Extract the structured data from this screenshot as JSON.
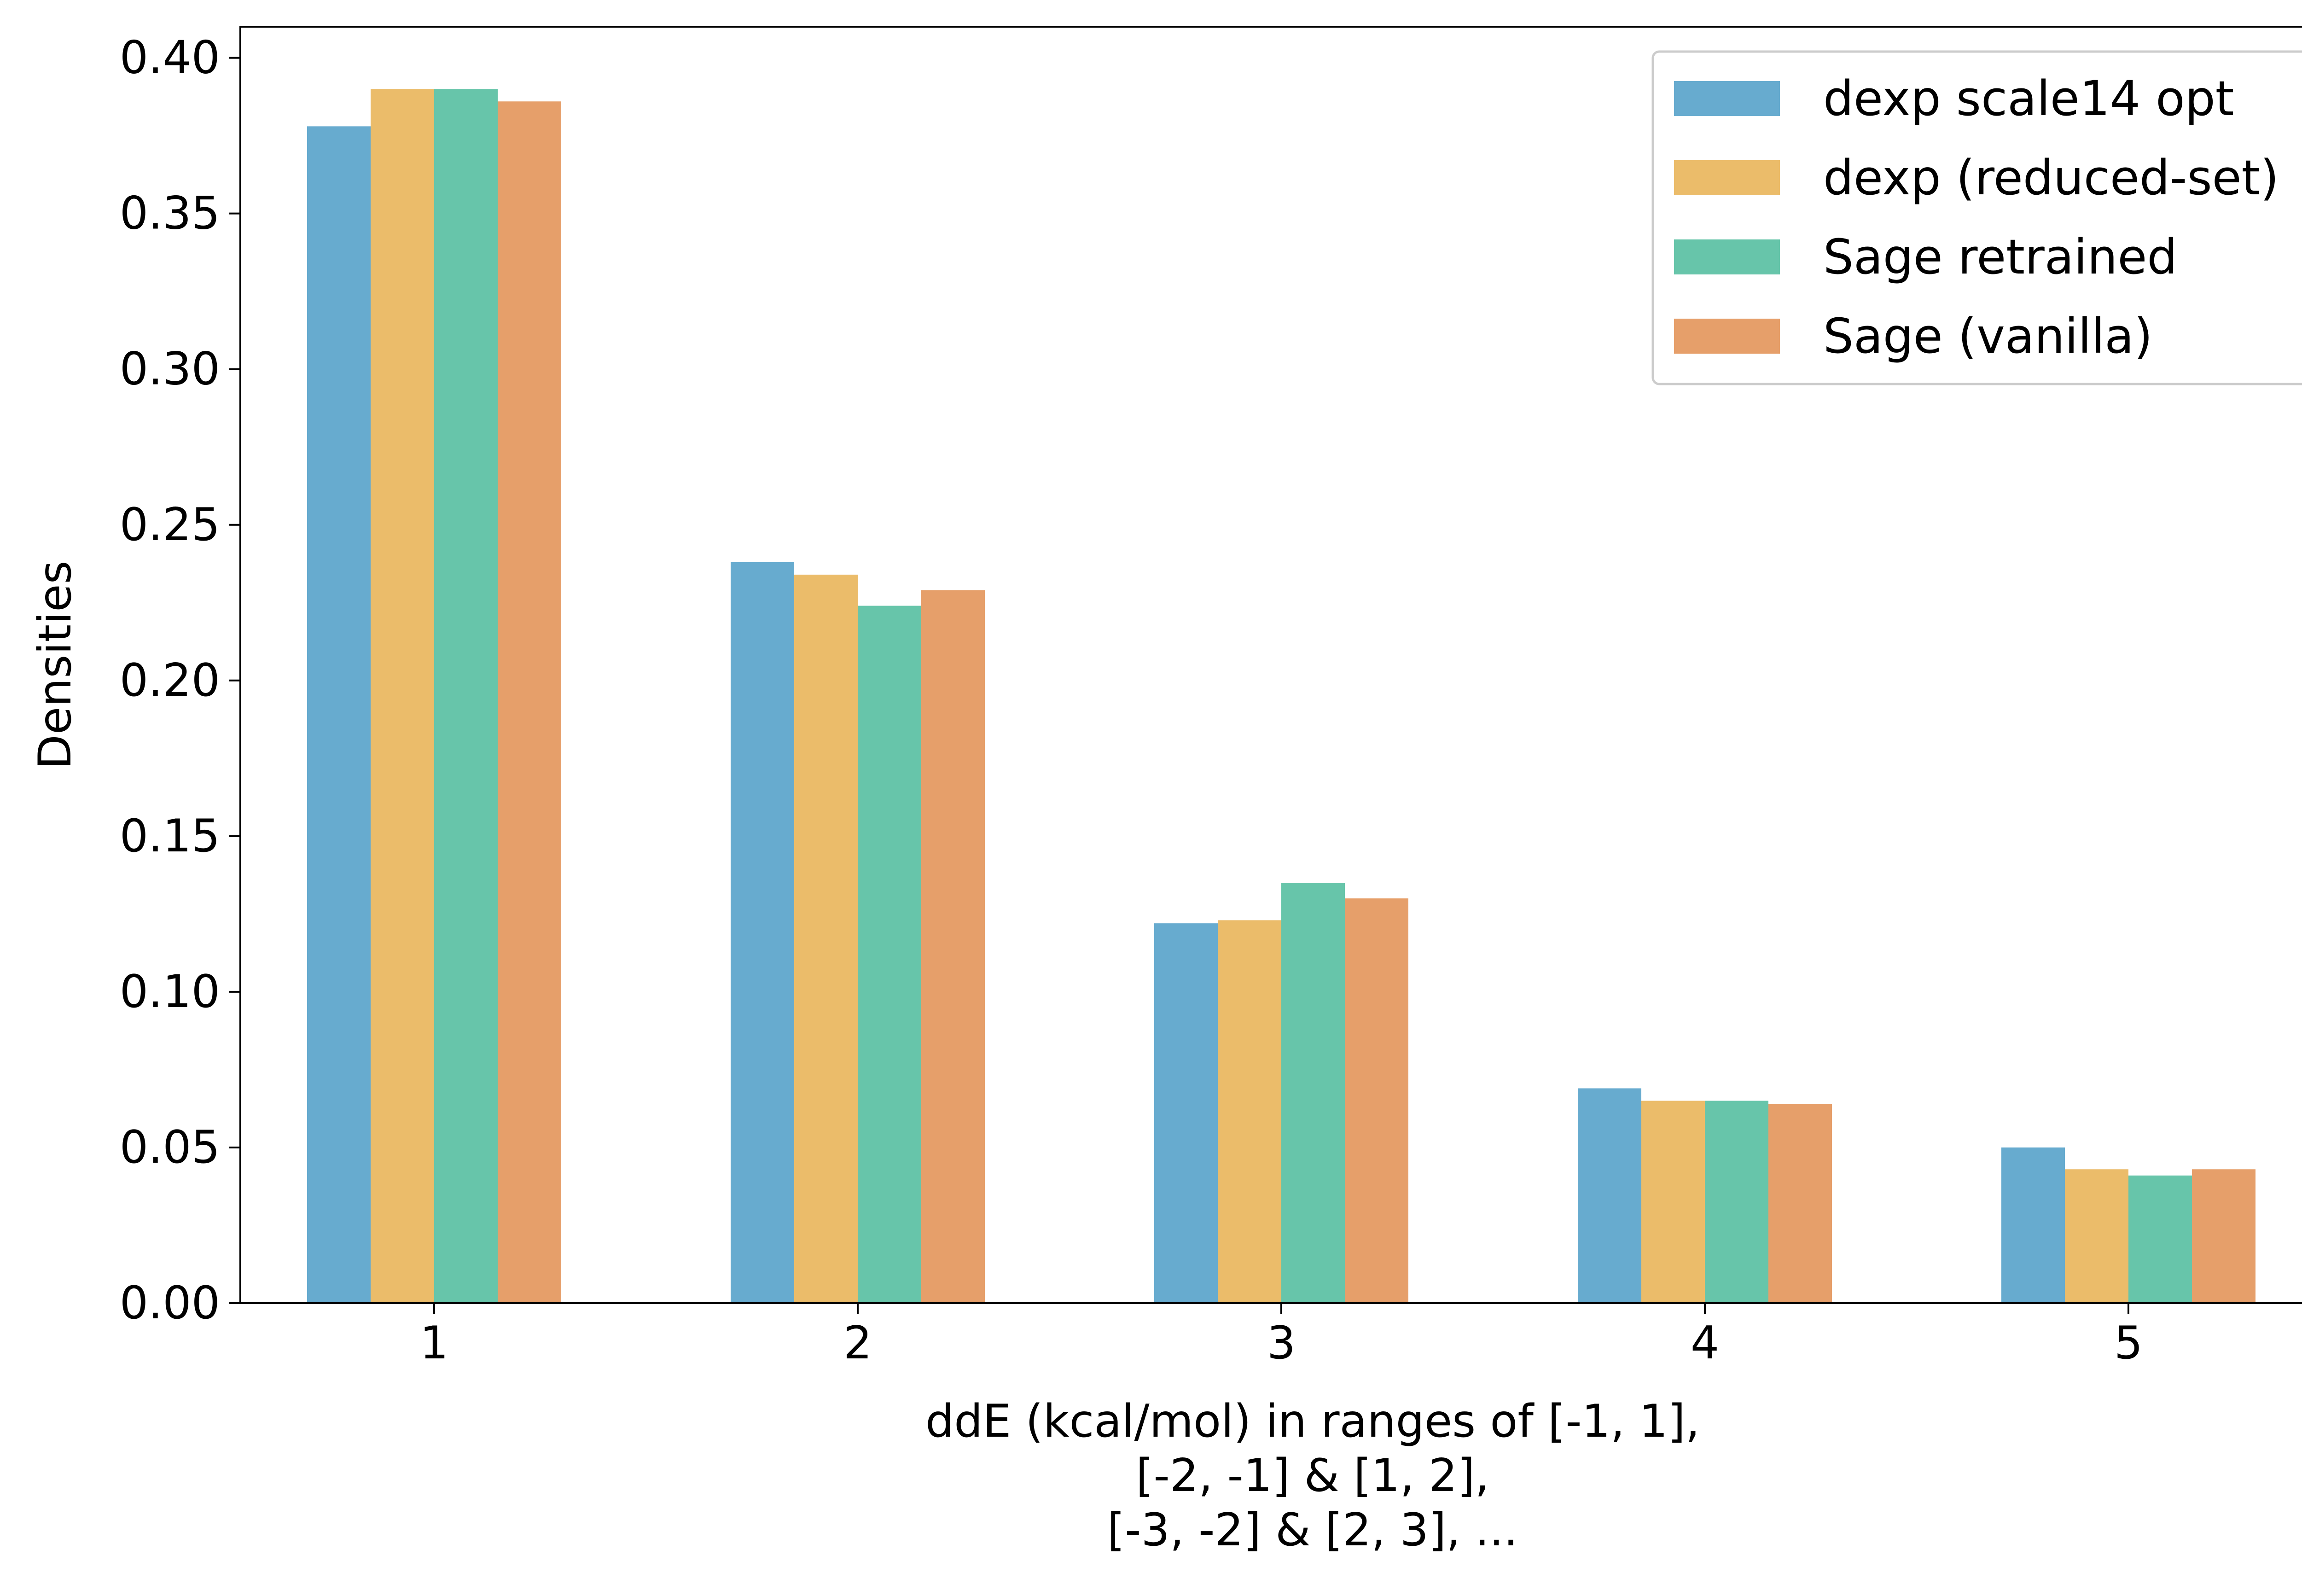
{
  "chart_data": {
    "type": "bar",
    "categories": [
      "1",
      "2",
      "3",
      "4",
      "5"
    ],
    "series": [
      {
        "name": "dexp scale14 opt",
        "color": "#67abcf",
        "values": [
          0.378,
          0.238,
          0.122,
          0.069,
          0.05
        ]
      },
      {
        "name": "dexp (reduced-set)",
        "color": "#ebbc6a",
        "values": [
          0.39,
          0.234,
          0.123,
          0.065,
          0.043
        ]
      },
      {
        "name": "Sage retrained",
        "color": "#67c5aa",
        "values": [
          0.39,
          0.224,
          0.135,
          0.065,
          0.041
        ]
      },
      {
        "name": "Sage (vanilla)",
        "color": "#e69f6a",
        "values": [
          0.386,
          0.229,
          0.13,
          0.064,
          0.043
        ]
      }
    ],
    "ylabel": "Densities",
    "xlabel_lines": [
      "ddE (kcal/mol) in ranges of [-1, 1],",
      "[-2, -1] & [1, 2],",
      "[-3, -2] & [2, 3], ..."
    ],
    "yticks": [
      "0.00",
      "0.05",
      "0.10",
      "0.15",
      "0.20",
      "0.25",
      "0.30",
      "0.35",
      "0.40"
    ],
    "ylim": [
      0,
      0.41
    ],
    "legend_position": "top-right",
    "grid": false
  }
}
